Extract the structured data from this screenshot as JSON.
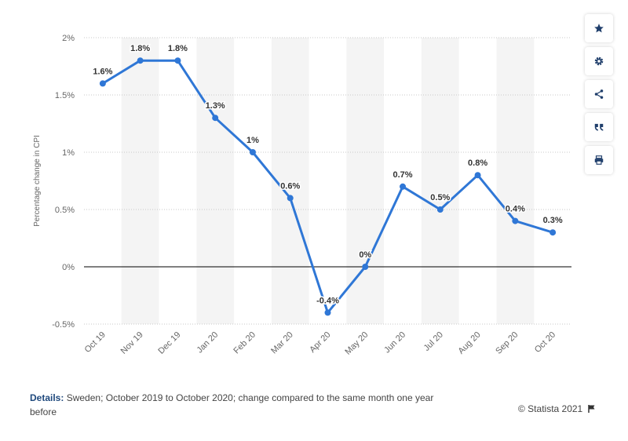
{
  "chart_data": {
    "type": "line",
    "categories": [
      "Oct 19",
      "Nov 19",
      "Dec 19",
      "Jan 20",
      "Feb 20",
      "Mar 20",
      "Apr 20",
      "May 20",
      "Jun 20",
      "Jul 20",
      "Aug 20",
      "Sep 20",
      "Oct 20"
    ],
    "series": [
      {
        "values": [
          1.6,
          1.8,
          1.8,
          1.3,
          1.0,
          0.6,
          -0.4,
          0.0,
          0.7,
          0.5,
          0.8,
          0.4,
          0.3
        ],
        "labels": [
          "1.6%",
          "1.8%",
          "1.8%",
          "1.3%",
          "1%",
          "0.6%",
          "-0.4%",
          "0%",
          "0.7%",
          "0.5%",
          "0.8%",
          "0.4%",
          "0.3%"
        ]
      }
    ],
    "ylabel": "Percentage change in CPI",
    "ylim": [
      -0.5,
      2
    ],
    "yticks": [
      {
        "value": 2,
        "label": "2%"
      },
      {
        "value": 1.5,
        "label": "1.5%"
      },
      {
        "value": 1,
        "label": "1%"
      },
      {
        "value": 0.5,
        "label": "0.5%"
      },
      {
        "value": 0,
        "label": "0%"
      },
      {
        "value": -0.5,
        "label": "-0.5%"
      }
    ],
    "grid": true,
    "line_color": "#2f77d6"
  },
  "footer": {
    "details_label": "Details:",
    "details_text": "Sweden; October 2019 to October 2020; change compared to the same month one year before",
    "copyright": "© Statista 2021"
  },
  "sidebar_icons": [
    "star-icon",
    "gear-icon",
    "share-icon",
    "quote-icon",
    "print-icon"
  ]
}
